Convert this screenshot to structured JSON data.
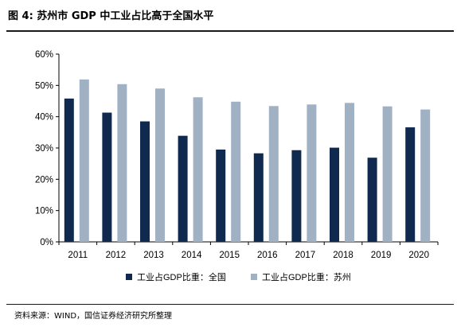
{
  "figure": {
    "title": "图 4:  苏州市 GDP 中工业占比高于全国水平",
    "source": "资料来源：WIND，国信证券经济研究所整理"
  },
  "chart_data": {
    "type": "bar",
    "categories": [
      "2011",
      "2012",
      "2013",
      "2014",
      "2015",
      "2016",
      "2017",
      "2018",
      "2019",
      "2020"
    ],
    "series": [
      {
        "name": "工业占GDP比重：全国",
        "color": "#0f2a4e",
        "values": [
          45.8,
          41.3,
          38.5,
          33.9,
          29.5,
          28.3,
          29.3,
          30.1,
          26.9,
          36.6
        ]
      },
      {
        "name": "工业占GDP比重：苏州",
        "color": "#a1b1c4",
        "values": [
          51.9,
          50.4,
          49.0,
          46.2,
          44.8,
          43.4,
          43.9,
          44.4,
          43.3,
          42.3
        ]
      }
    ],
    "ylim": [
      0,
      60
    ],
    "yticks": [
      0,
      10,
      20,
      30,
      40,
      50,
      60
    ],
    "ytick_labels": [
      "0%",
      "10%",
      "20%",
      "30%",
      "40%",
      "50%",
      "60%"
    ],
    "grid": false,
    "legend_position": "bottom"
  }
}
